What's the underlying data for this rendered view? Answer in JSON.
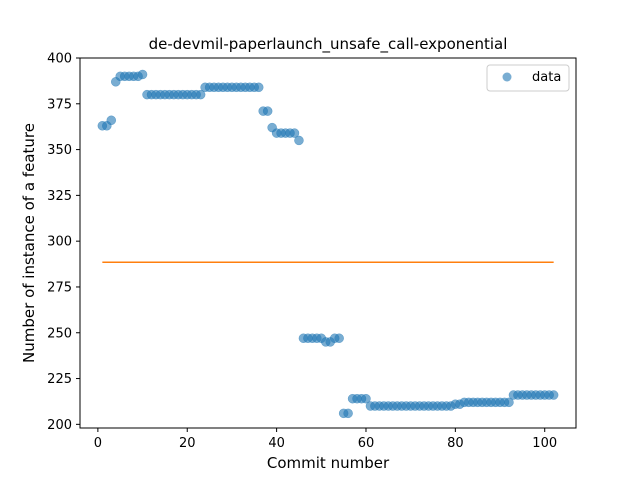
{
  "chart_data": {
    "type": "scatter",
    "title": "de-devmil-paperlaunch_unsafe_call-exponential",
    "xlabel": "Commit number",
    "ylabel": "Number of instance of a feature",
    "xlim": [
      -4,
      107
    ],
    "ylim": [
      198,
      400
    ],
    "xticks": [
      0,
      20,
      40,
      60,
      80,
      100
    ],
    "yticks": [
      200,
      225,
      250,
      275,
      300,
      325,
      350,
      375,
      400
    ],
    "legend": {
      "placement": "top-right",
      "entries": [
        "data"
      ]
    },
    "colors": {
      "data": "#1f77b4",
      "fit": "#ff7f0e"
    },
    "series": [
      {
        "name": "data",
        "kind": "scatter",
        "x": [
          1,
          2,
          3,
          4,
          5,
          6,
          7,
          8,
          9,
          10,
          11,
          12,
          13,
          14,
          15,
          16,
          17,
          18,
          19,
          20,
          21,
          22,
          23,
          24,
          25,
          26,
          27,
          28,
          29,
          30,
          31,
          32,
          33,
          34,
          35,
          36,
          37,
          38,
          39,
          40,
          41,
          42,
          43,
          44,
          45,
          46,
          47,
          48,
          49,
          50,
          51,
          52,
          53,
          54,
          55,
          56,
          57,
          58,
          59,
          60,
          61,
          62,
          63,
          64,
          65,
          66,
          67,
          68,
          69,
          70,
          71,
          72,
          73,
          74,
          75,
          76,
          77,
          78,
          79,
          80,
          81,
          82,
          83,
          84,
          85,
          86,
          87,
          88,
          89,
          90,
          91,
          92,
          93,
          94,
          95,
          96,
          97,
          98,
          99,
          100,
          101,
          102
        ],
        "y": [
          363,
          363,
          366,
          387,
          390,
          390,
          390,
          390,
          390,
          391,
          380,
          380,
          380,
          380,
          380,
          380,
          380,
          380,
          380,
          380,
          380,
          380,
          380,
          384,
          384,
          384,
          384,
          384,
          384,
          384,
          384,
          384,
          384,
          384,
          384,
          384,
          371,
          371,
          362,
          359,
          359,
          359,
          359,
          359,
          355,
          247,
          247,
          247,
          247,
          247,
          245,
          245,
          247,
          247,
          206,
          206,
          214,
          214,
          214,
          214,
          210,
          210,
          210,
          210,
          210,
          210,
          210,
          210,
          210,
          210,
          210,
          210,
          210,
          210,
          210,
          210,
          210,
          210,
          210,
          211,
          211,
          212,
          212,
          212,
          212,
          212,
          212,
          212,
          212,
          212,
          212,
          212,
          216,
          216,
          216,
          216,
          216,
          216,
          216,
          216,
          216,
          216
        ]
      },
      {
        "name": "",
        "kind": "line",
        "x": [
          1,
          102
        ],
        "y": [
          288.5,
          288.5
        ]
      }
    ]
  }
}
